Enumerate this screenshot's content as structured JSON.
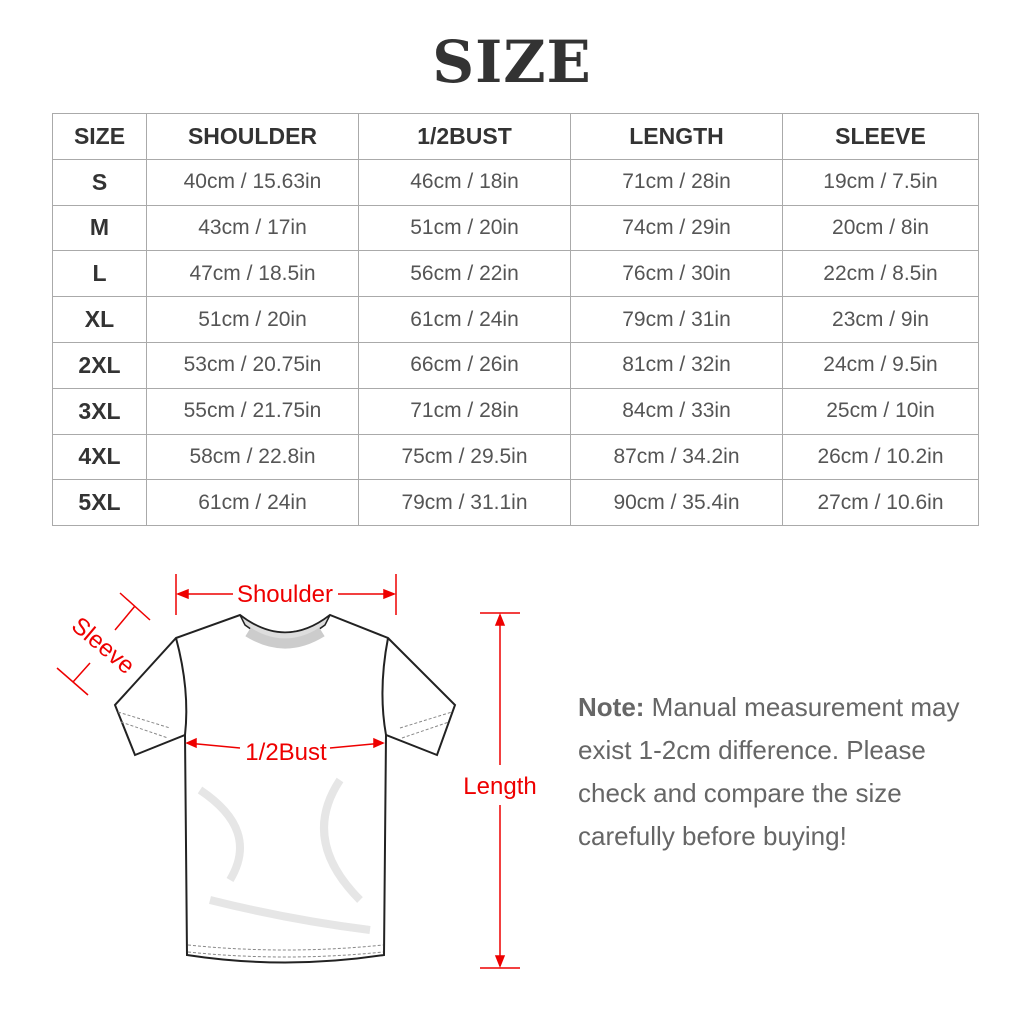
{
  "title": "SIZE",
  "table": {
    "headers": [
      "SIZE",
      "SHOULDER",
      "1/2BUST",
      "LENGTH",
      "SLEEVE"
    ],
    "rows": [
      [
        "S",
        "40cm / 15.63in",
        "46cm / 18in",
        "71cm / 28in",
        "19cm / 7.5in"
      ],
      [
        "M",
        "43cm / 17in",
        "51cm / 20in",
        "74cm / 29in",
        "20cm / 8in"
      ],
      [
        "L",
        "47cm / 18.5in",
        "56cm / 22in",
        "76cm / 30in",
        "22cm / 8.5in"
      ],
      [
        "XL",
        "51cm / 20in",
        "61cm / 24in",
        "79cm / 31in",
        "23cm / 9in"
      ],
      [
        "2XL",
        "53cm / 20.75in",
        "66cm / 26in",
        "81cm / 32in",
        "24cm / 9.5in"
      ],
      [
        "3XL",
        "55cm / 21.75in",
        "71cm / 28in",
        "84cm / 33in",
        "25cm / 10in"
      ],
      [
        "4XL",
        "58cm / 22.8in",
        "75cm / 29.5in",
        "87cm / 34.2in",
        "26cm / 10.2in"
      ],
      [
        "5XL",
        "61cm / 24in",
        "79cm / 31.1in",
        "90cm / 35.4in",
        "27cm / 10.6in"
      ]
    ]
  },
  "diagram": {
    "shoulder_label": "Shoulder",
    "sleeve_label": "Sleeve",
    "bust_label": "1/2Bust",
    "length_label": "Length",
    "accent_color": "#e00000"
  },
  "note": {
    "label": "Note:",
    "text": "Manual measurement may exist 1-2cm difference. Please check and compare the size carefully before buying!"
  }
}
